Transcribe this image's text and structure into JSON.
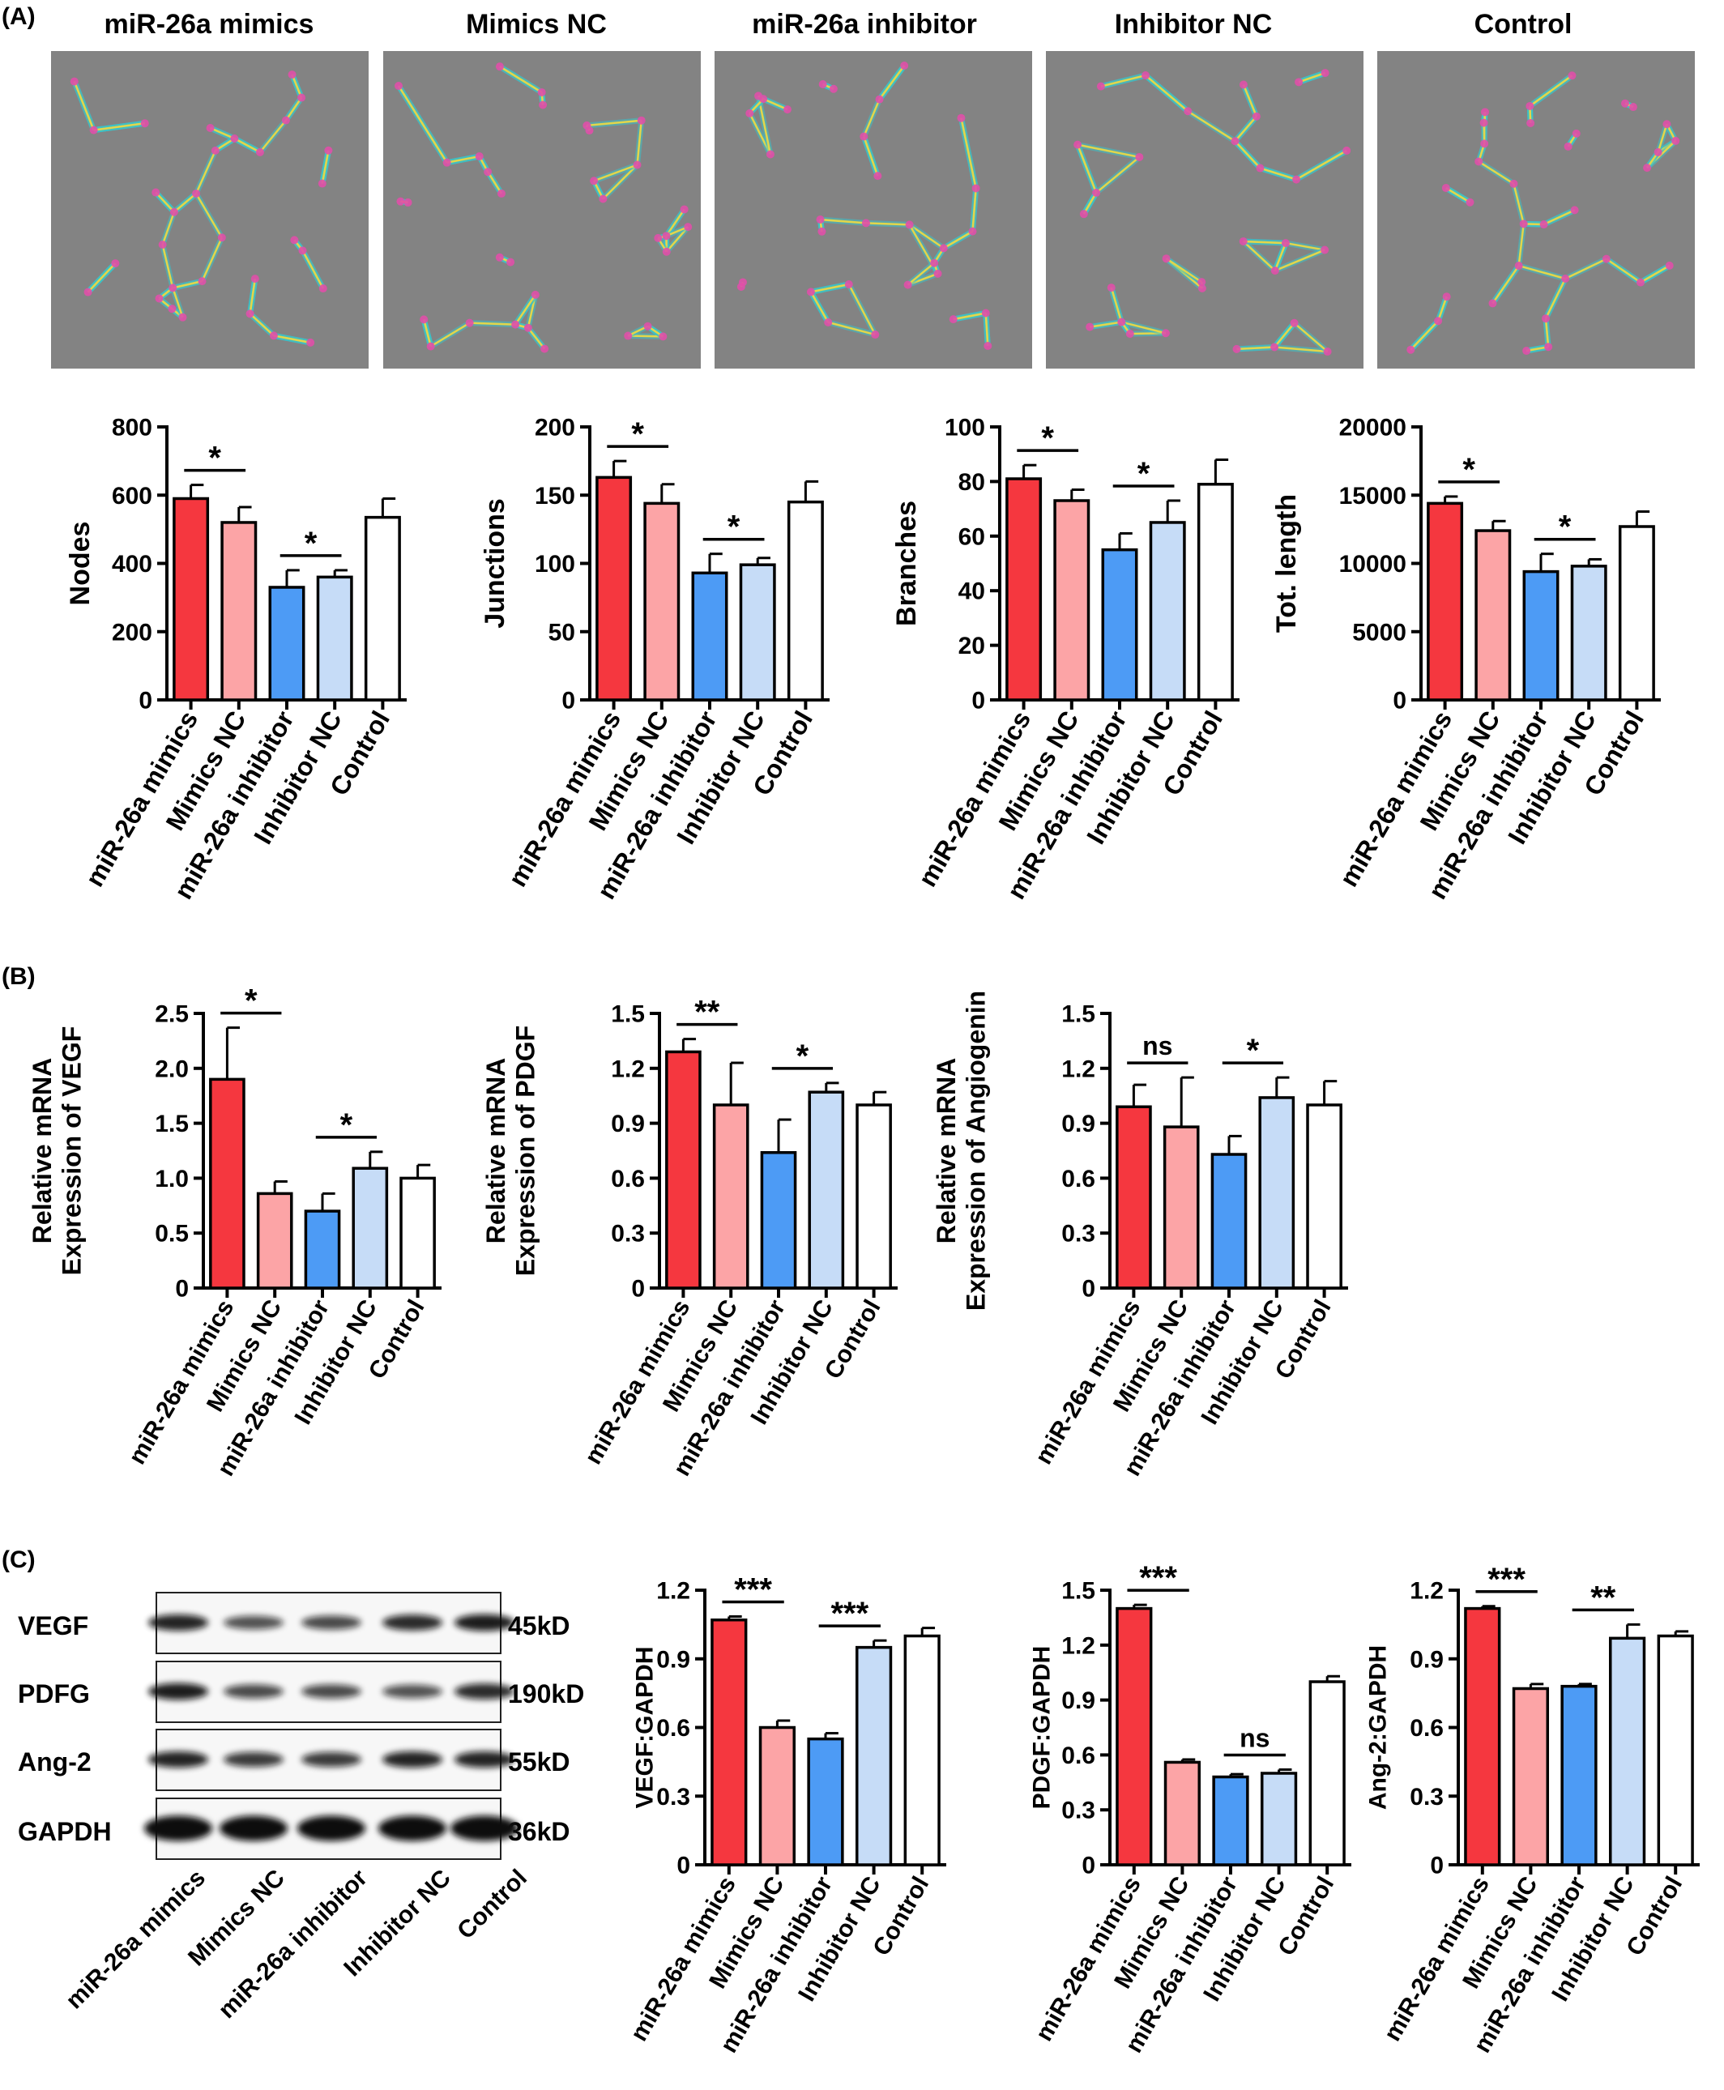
{
  "panels": {
    "A": "(A)",
    "B": "(B)",
    "C": "(C)"
  },
  "groups": [
    "miR-26a mimics",
    "Mimics NC",
    "miR-26a inhibitor",
    "Inhibitor NC",
    "Control"
  ],
  "colors": [
    "#f5373f",
    "#fca4a6",
    "#4d9bf5",
    "#c6dcf7",
    "#ffffff"
  ],
  "micrographs": {
    "titles": [
      "miR-26a mimics",
      "Mimics NC",
      "miR-26a inhibitor",
      "Inhibitor NC",
      "Control"
    ],
    "description_colors": {
      "background": "#7d7d7d",
      "tube": "#e3d64a",
      "branch": "#3cc4c8",
      "node": "#e04fa8"
    }
  },
  "blot": {
    "bands": [
      {
        "label": "VEGF",
        "size": "45kD",
        "intensity": [
          0.85,
          0.55,
          0.6,
          0.8,
          0.9
        ]
      },
      {
        "label": "PDFG",
        "size": "190kD",
        "intensity": [
          0.9,
          0.6,
          0.6,
          0.55,
          0.8
        ]
      },
      {
        "label": "Ang-2",
        "size": "55kD",
        "intensity": [
          0.85,
          0.7,
          0.7,
          0.85,
          0.85
        ]
      },
      {
        "label": "GAPDH",
        "size": "36kD",
        "intensity": [
          1.0,
          1.0,
          1.0,
          1.0,
          1.0
        ]
      }
    ]
  },
  "chart_data": [
    {
      "type": "bar",
      "panel": "A",
      "ylabel": "Nodes",
      "ylim": [
        0,
        800
      ],
      "yticks": [
        "0",
        "200",
        "400",
        "600",
        "800"
      ],
      "categories": [
        "miR-26a mimics",
        "Mimics NC",
        "miR-26a inhibitor",
        "Inhibitor NC",
        "Control"
      ],
      "values": [
        590,
        520,
        330,
        360,
        535
      ],
      "errors": [
        40,
        45,
        50,
        20,
        55
      ],
      "annotations": [
        {
          "from": 0,
          "to": 1,
          "label": "*"
        },
        {
          "from": 2,
          "to": 3,
          "label": "*"
        }
      ]
    },
    {
      "type": "bar",
      "panel": "A",
      "ylabel": "Junctions",
      "ylim": [
        0,
        200
      ],
      "yticks": [
        "0",
        "50",
        "100",
        "150",
        "200"
      ],
      "categories": [
        "miR-26a mimics",
        "Mimics NC",
        "miR-26a inhibitor",
        "Inhibitor NC",
        "Control"
      ],
      "values": [
        163,
        144,
        93,
        99,
        145
      ],
      "errors": [
        12,
        14,
        14,
        5,
        15
      ],
      "annotations": [
        {
          "from": 0,
          "to": 1,
          "label": "*"
        },
        {
          "from": 2,
          "to": 3,
          "label": "*"
        }
      ]
    },
    {
      "type": "bar",
      "panel": "A",
      "ylabel": "Branches",
      "ylim": [
        0,
        100
      ],
      "yticks": [
        "0",
        "20",
        "40",
        "60",
        "80",
        "100"
      ],
      "categories": [
        "miR-26a mimics",
        "Mimics NC",
        "miR-26a inhibitor",
        "Inhibitor NC",
        "Control"
      ],
      "values": [
        81,
        73,
        55,
        65,
        79
      ],
      "errors": [
        5,
        4,
        6,
        8,
        9
      ],
      "annotations": [
        {
          "from": 0,
          "to": 1,
          "label": "*"
        },
        {
          "from": 2,
          "to": 3,
          "label": "*"
        }
      ]
    },
    {
      "type": "bar",
      "panel": "A",
      "ylabel": "Tot. length",
      "ylim": [
        0,
        20000
      ],
      "yticks": [
        "0",
        "5000",
        "10000",
        "15000",
        "20000"
      ],
      "categories": [
        "miR-26a mimics",
        "Mimics NC",
        "miR-26a inhibitor",
        "Inhibitor NC",
        "Control"
      ],
      "values": [
        14400,
        12400,
        9400,
        9800,
        12700
      ],
      "errors": [
        500,
        700,
        1300,
        500,
        1100
      ],
      "annotations": [
        {
          "from": 0,
          "to": 1,
          "label": "*"
        },
        {
          "from": 2,
          "to": 3,
          "label": "*"
        }
      ]
    },
    {
      "type": "bar",
      "panel": "B",
      "ylabel": [
        "Relative mRNA",
        "Expression of VEGF"
      ],
      "ylim": [
        0,
        2.5
      ],
      "yticks": [
        "0",
        "0.5",
        "1.0",
        "1.5",
        "2.0",
        "2.5"
      ],
      "categories": [
        "miR-26a mimics",
        "Mimics NC",
        "miR-26a inhibitor",
        "Inhibitor NC",
        "Control"
      ],
      "values": [
        1.9,
        0.86,
        0.7,
        1.09,
        1.0
      ],
      "errors": [
        0.47,
        0.11,
        0.16,
        0.15,
        0.12
      ],
      "annotations": [
        {
          "from": 0,
          "to": 1,
          "label": "*"
        },
        {
          "from": 2,
          "to": 3,
          "label": "*"
        }
      ]
    },
    {
      "type": "bar",
      "panel": "B",
      "ylabel": [
        "Relative mRNA",
        "Expression of PDGF"
      ],
      "ylim": [
        0,
        1.5
      ],
      "yticks": [
        "0",
        "0.3",
        "0.6",
        "0.9",
        "1.2",
        "1.5"
      ],
      "categories": [
        "miR-26a mimics",
        "Mimics NC",
        "miR-26a inhibitor",
        "Inhibitor NC",
        "Control"
      ],
      "values": [
        1.29,
        1.0,
        0.74,
        1.07,
        1.0
      ],
      "errors": [
        0.07,
        0.23,
        0.18,
        0.05,
        0.07
      ],
      "annotations": [
        {
          "from": 0,
          "to": 1,
          "label": "**"
        },
        {
          "from": 2,
          "to": 3,
          "label": "*"
        }
      ]
    },
    {
      "type": "bar",
      "panel": "B",
      "ylabel": [
        "Relative mRNA",
        "Expression of Angiogenin"
      ],
      "ylim": [
        0,
        1.5
      ],
      "yticks": [
        "0",
        "0.3",
        "0.6",
        "0.9",
        "1.2",
        "1.5"
      ],
      "categories": [
        "miR-26a mimics",
        "Mimics NC",
        "miR-26a inhibitor",
        "Inhibitor NC",
        "Control"
      ],
      "values": [
        0.99,
        0.88,
        0.73,
        1.04,
        1.0
      ],
      "errors": [
        0.12,
        0.27,
        0.1,
        0.11,
        0.13
      ],
      "annotations": [
        {
          "from": 0,
          "to": 1,
          "label": "ns"
        },
        {
          "from": 2,
          "to": 3,
          "label": "*"
        }
      ]
    },
    {
      "type": "bar",
      "panel": "C",
      "ylabel": "VEGF:GAPDH",
      "ylim": [
        0,
        1.2
      ],
      "yticks": [
        "0",
        "0.3",
        "0.6",
        "0.9",
        "1.2"
      ],
      "categories": [
        "miR-26a mimics",
        "Mimics NC",
        "miR-26a inhibitor",
        "Inhibitor NC",
        "Control"
      ],
      "values": [
        1.07,
        0.6,
        0.55,
        0.95,
        1.0
      ],
      "errors": [
        0.015,
        0.03,
        0.025,
        0.03,
        0.035
      ],
      "annotations": [
        {
          "from": 0,
          "to": 1,
          "label": "***"
        },
        {
          "from": 2,
          "to": 3,
          "label": "***"
        }
      ]
    },
    {
      "type": "bar",
      "panel": "C",
      "ylabel": "PDGF:GAPDH",
      "ylim": [
        0,
        1.5
      ],
      "yticks": [
        "0",
        "0.3",
        "0.6",
        "0.9",
        "1.2",
        "1.5"
      ],
      "categories": [
        "miR-26a mimics",
        "Mimics NC",
        "miR-26a inhibitor",
        "Inhibitor NC",
        "Control"
      ],
      "values": [
        1.4,
        0.56,
        0.48,
        0.5,
        1.0
      ],
      "errors": [
        0.02,
        0.015,
        0.015,
        0.02,
        0.03
      ],
      "annotations": [
        {
          "from": 0,
          "to": 1,
          "label": "***"
        },
        {
          "from": 2,
          "to": 3,
          "label": "ns"
        }
      ]
    },
    {
      "type": "bar",
      "panel": "C",
      "ylabel": "Ang-2:GAPDH",
      "ylim": [
        0,
        1.2
      ],
      "yticks": [
        "0",
        "0.3",
        "0.6",
        "0.9",
        "1.2"
      ],
      "categories": [
        "miR-26a mimics",
        "Mimics NC",
        "miR-26a inhibitor",
        "Inhibitor NC",
        "Control"
      ],
      "values": [
        1.12,
        0.77,
        0.78,
        0.99,
        1.0
      ],
      "errors": [
        0.01,
        0.02,
        0.01,
        0.06,
        0.02
      ],
      "annotations": [
        {
          "from": 0,
          "to": 1,
          "label": "***"
        },
        {
          "from": 2,
          "to": 3,
          "label": "**"
        }
      ]
    }
  ]
}
